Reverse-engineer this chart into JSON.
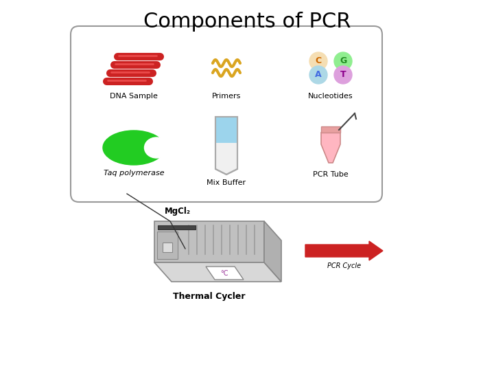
{
  "title": "Components of PCR",
  "title_fontsize": 22,
  "title_fontweight": "normal",
  "bg_color": "#ffffff",
  "box_bg": "#ffffff",
  "box_edge": "#999999",
  "labels": {
    "dna": "DNA Sample",
    "primers": "Primers",
    "nucleotides": "Nucleotides",
    "taq": "Taq polymerase",
    "mix": "Mix Buffer",
    "tube": "PCR Tube",
    "mgcl2": "MgCl₂",
    "thermal": "Thermal Cycler",
    "pcrcycle": "PCR Cycle"
  },
  "nucleotide_labels": [
    "C",
    "G",
    "A",
    "T"
  ],
  "nucleotide_colors": [
    "#f5deb3",
    "#90ee90",
    "#add8e6",
    "#dda0dd"
  ],
  "nucleotide_text_colors": [
    "#cc6600",
    "#228b22",
    "#4169e1",
    "#8b008b"
  ],
  "dna_color": "#cc2222",
  "primer_color": "#daa520",
  "taq_color": "#22cc22",
  "buffer_color": "#87ceeb",
  "tube_color": "#ffb6c1",
  "arrow_color": "#cc2222",
  "line_color": "#333333",
  "cycler_body": "#c0c0c0",
  "cycler_top": "#d8d8d8",
  "cycler_dark": "#999999"
}
